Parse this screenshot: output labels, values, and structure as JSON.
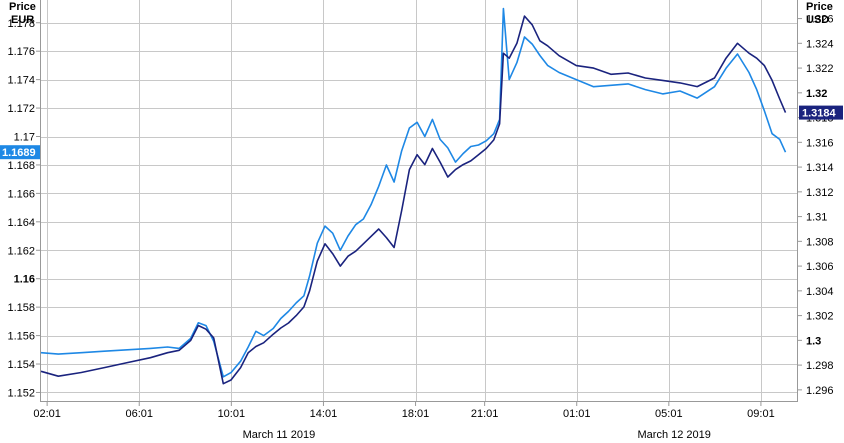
{
  "chart_data": {
    "type": "line",
    "left_axis": {
      "title_line1": "Price",
      "title_line2": "EUR",
      "ylim": [
        1.1514,
        1.1796
      ],
      "ticks": [
        {
          "v": 1.152,
          "label": "1.152",
          "bold": false
        },
        {
          "v": 1.154,
          "label": "1.154",
          "bold": false
        },
        {
          "v": 1.156,
          "label": "1.156",
          "bold": false
        },
        {
          "v": 1.158,
          "label": "1.158",
          "bold": false
        },
        {
          "v": 1.16,
          "label": "1.16",
          "bold": true
        },
        {
          "v": 1.162,
          "label": "1.162",
          "bold": false
        },
        {
          "v": 1.164,
          "label": "1.164",
          "bold": false
        },
        {
          "v": 1.166,
          "label": "1.166",
          "bold": false
        },
        {
          "v": 1.168,
          "label": "1.168",
          "bold": false
        },
        {
          "v": 1.17,
          "label": "1.17",
          "bold": false
        },
        {
          "v": 1.172,
          "label": "1.172",
          "bold": false
        },
        {
          "v": 1.174,
          "label": "1.174",
          "bold": false
        },
        {
          "v": 1.176,
          "label": "1.176",
          "bold": false
        },
        {
          "v": 1.178,
          "label": "1.178",
          "bold": false
        }
      ],
      "last_value_label": "1.1689",
      "last_value": 1.1689,
      "badge_color": "#1e88e5"
    },
    "right_axis": {
      "title_line1": "Price",
      "title_line2": "USD",
      "ylim": [
        1.2951,
        1.3275
      ],
      "ticks": [
        {
          "v": 1.296,
          "label": "1.296",
          "bold": false
        },
        {
          "v": 1.298,
          "label": "1.298",
          "bold": false
        },
        {
          "v": 1.3,
          "label": "1.3",
          "bold": true
        },
        {
          "v": 1.302,
          "label": "1.302",
          "bold": false
        },
        {
          "v": 1.304,
          "label": "1.304",
          "bold": false
        },
        {
          "v": 1.306,
          "label": "1.306",
          "bold": false
        },
        {
          "v": 1.308,
          "label": "1.308",
          "bold": false
        },
        {
          "v": 1.31,
          "label": "1.31",
          "bold": false
        },
        {
          "v": 1.312,
          "label": "1.312",
          "bold": false
        },
        {
          "v": 1.314,
          "label": "1.314",
          "bold": false
        },
        {
          "v": 1.316,
          "label": "1.316",
          "bold": false
        },
        {
          "v": 1.318,
          "label": "1.318",
          "bold": false
        },
        {
          "v": 1.32,
          "label": "1.32",
          "bold": true
        },
        {
          "v": 1.322,
          "label": "1.322",
          "bold": false
        },
        {
          "v": 1.324,
          "label": "1.324",
          "bold": false
        },
        {
          "v": 1.326,
          "label": "1.326",
          "bold": false
        }
      ],
      "last_value_label": "1.3184",
      "last_value": 1.3184,
      "badge_color": "#1a237e"
    },
    "x_axis": {
      "start": "2019-03-11T01:45",
      "end": "2019-03-12T10:35",
      "ticks": [
        {
          "t": "2019-03-11T02:01",
          "label": "02:01"
        },
        {
          "t": "2019-03-11T06:01",
          "label": "06:01"
        },
        {
          "t": "2019-03-11T10:01",
          "label": "10:01"
        },
        {
          "t": "2019-03-11T14:01",
          "label": "14:01"
        },
        {
          "t": "2019-03-11T18:01",
          "label": "18:01"
        },
        {
          "t": "2019-03-11T21:01",
          "label": "21:01"
        },
        {
          "t": "2019-03-12T01:01",
          "label": "01:01"
        },
        {
          "t": "2019-03-12T05:01",
          "label": "05:01"
        },
        {
          "t": "2019-03-12T09:01",
          "label": "09:01"
        }
      ],
      "date_labels": [
        {
          "t": "2019-03-11T12:05",
          "label": "March 11 2019"
        },
        {
          "t": "2019-03-12T05:15",
          "label": "March 12 2019"
        }
      ]
    },
    "grid": true,
    "series": [
      {
        "axis": "left",
        "color": "#1e88e5",
        "points": [
          [
            "2019-03-11T01:45",
            1.1548
          ],
          [
            "2019-03-11T02:30",
            1.1547
          ],
          [
            "2019-03-11T03:30",
            1.1548
          ],
          [
            "2019-03-11T04:30",
            1.1549
          ],
          [
            "2019-03-11T05:30",
            1.155
          ],
          [
            "2019-03-11T06:30",
            1.1551
          ],
          [
            "2019-03-11T07:15",
            1.1552
          ],
          [
            "2019-03-11T07:45",
            1.1551
          ],
          [
            "2019-03-11T08:15",
            1.1558
          ],
          [
            "2019-03-11T08:35",
            1.1569
          ],
          [
            "2019-03-11T08:55",
            1.1567
          ],
          [
            "2019-03-11T09:15",
            1.1556
          ],
          [
            "2019-03-11T09:40",
            1.1531
          ],
          [
            "2019-03-11T10:00",
            1.1534
          ],
          [
            "2019-03-11T10:25",
            1.1542
          ],
          [
            "2019-03-11T10:45",
            1.1552
          ],
          [
            "2019-03-11T11:05",
            1.1563
          ],
          [
            "2019-03-11T11:25",
            1.156
          ],
          [
            "2019-03-11T11:50",
            1.1565
          ],
          [
            "2019-03-11T12:10",
            1.1572
          ],
          [
            "2019-03-11T12:30",
            1.1577
          ],
          [
            "2019-03-11T12:50",
            1.1583
          ],
          [
            "2019-03-11T13:10",
            1.1588
          ],
          [
            "2019-03-11T13:25",
            1.1602
          ],
          [
            "2019-03-11T13:45",
            1.1625
          ],
          [
            "2019-03-11T14:05",
            1.1637
          ],
          [
            "2019-03-11T14:25",
            1.1632
          ],
          [
            "2019-03-11T14:45",
            1.162
          ],
          [
            "2019-03-11T15:05",
            1.163
          ],
          [
            "2019-03-11T15:25",
            1.1638
          ],
          [
            "2019-03-11T15:45",
            1.1642
          ],
          [
            "2019-03-11T16:05",
            1.1652
          ],
          [
            "2019-03-11T16:25",
            1.1665
          ],
          [
            "2019-03-11T16:45",
            1.168
          ],
          [
            "2019-03-11T17:05",
            1.1668
          ],
          [
            "2019-03-11T17:25",
            1.169
          ],
          [
            "2019-03-11T17:45",
            1.1706
          ],
          [
            "2019-03-11T18:05",
            1.171
          ],
          [
            "2019-03-11T18:25",
            1.17
          ],
          [
            "2019-03-11T18:45",
            1.1712
          ],
          [
            "2019-03-11T19:05",
            1.1698
          ],
          [
            "2019-03-11T19:25",
            1.1692
          ],
          [
            "2019-03-11T19:45",
            1.1682
          ],
          [
            "2019-03-11T20:05",
            1.1688
          ],
          [
            "2019-03-11T20:25",
            1.1693
          ],
          [
            "2019-03-11T20:45",
            1.1694
          ],
          [
            "2019-03-11T21:05",
            1.1697
          ],
          [
            "2019-03-11T21:25",
            1.1702
          ],
          [
            "2019-03-11T21:40",
            1.1712
          ],
          [
            "2019-03-11T21:50",
            1.179
          ],
          [
            "2019-03-11T22:05",
            1.174
          ],
          [
            "2019-03-11T22:25",
            1.1752
          ],
          [
            "2019-03-11T22:45",
            1.177
          ],
          [
            "2019-03-11T23:05",
            1.1765
          ],
          [
            "2019-03-11T23:25",
            1.1757
          ],
          [
            "2019-03-11T23:45",
            1.175
          ],
          [
            "2019-03-12T00:15",
            1.1745
          ],
          [
            "2019-03-12T01:00",
            1.174
          ],
          [
            "2019-03-12T01:45",
            1.1735
          ],
          [
            "2019-03-12T02:30",
            1.1736
          ],
          [
            "2019-03-12T03:15",
            1.1737
          ],
          [
            "2019-03-12T04:00",
            1.1733
          ],
          [
            "2019-03-12T04:45",
            1.173
          ],
          [
            "2019-03-12T05:30",
            1.1732
          ],
          [
            "2019-03-12T06:15",
            1.1727
          ],
          [
            "2019-03-12T07:00",
            1.1735
          ],
          [
            "2019-03-12T07:30",
            1.1748
          ],
          [
            "2019-03-12T08:00",
            1.1758
          ],
          [
            "2019-03-12T08:30",
            1.1745
          ],
          [
            "2019-03-12T08:50",
            1.1733
          ],
          [
            "2019-03-12T09:10",
            1.1718
          ],
          [
            "2019-03-12T09:30",
            1.1702
          ],
          [
            "2019-03-12T09:50",
            1.1698
          ],
          [
            "2019-03-12T10:05",
            1.1689
          ]
        ]
      },
      {
        "axis": "right",
        "color": "#1a237e",
        "points": [
          [
            "2019-03-11T01:45",
            1.2975
          ],
          [
            "2019-03-11T02:30",
            1.2971
          ],
          [
            "2019-03-11T03:30",
            1.2974
          ],
          [
            "2019-03-11T04:30",
            1.2978
          ],
          [
            "2019-03-11T05:30",
            1.2982
          ],
          [
            "2019-03-11T06:30",
            1.2986
          ],
          [
            "2019-03-11T07:15",
            1.299
          ],
          [
            "2019-03-11T07:45",
            1.2992
          ],
          [
            "2019-03-11T08:15",
            1.3
          ],
          [
            "2019-03-11T08:35",
            1.3012
          ],
          [
            "2019-03-11T08:55",
            1.3009
          ],
          [
            "2019-03-11T09:15",
            1.3002
          ],
          [
            "2019-03-11T09:40",
            1.2965
          ],
          [
            "2019-03-11T10:00",
            1.2968
          ],
          [
            "2019-03-11T10:25",
            1.2978
          ],
          [
            "2019-03-11T10:45",
            1.299
          ],
          [
            "2019-03-11T11:05",
            1.2995
          ],
          [
            "2019-03-11T11:25",
            1.2998
          ],
          [
            "2019-03-11T11:50",
            1.3005
          ],
          [
            "2019-03-11T12:10",
            1.301
          ],
          [
            "2019-03-11T12:30",
            1.3014
          ],
          [
            "2019-03-11T12:50",
            1.302
          ],
          [
            "2019-03-11T13:10",
            1.3027
          ],
          [
            "2019-03-11T13:25",
            1.304
          ],
          [
            "2019-03-11T13:45",
            1.3064
          ],
          [
            "2019-03-11T14:05",
            1.3078
          ],
          [
            "2019-03-11T14:25",
            1.307
          ],
          [
            "2019-03-11T14:45",
            1.306
          ],
          [
            "2019-03-11T15:05",
            1.3068
          ],
          [
            "2019-03-11T15:25",
            1.3072
          ],
          [
            "2019-03-11T15:45",
            1.3078
          ],
          [
            "2019-03-11T16:05",
            1.3084
          ],
          [
            "2019-03-11T16:25",
            1.309
          ],
          [
            "2019-03-11T16:45",
            1.3083
          ],
          [
            "2019-03-11T17:05",
            1.3075
          ],
          [
            "2019-03-11T17:25",
            1.3105
          ],
          [
            "2019-03-11T17:45",
            1.3138
          ],
          [
            "2019-03-11T18:05",
            1.315
          ],
          [
            "2019-03-11T18:25",
            1.3142
          ],
          [
            "2019-03-11T18:45",
            1.3155
          ],
          [
            "2019-03-11T19:05",
            1.3144
          ],
          [
            "2019-03-11T19:25",
            1.3132
          ],
          [
            "2019-03-11T19:45",
            1.3138
          ],
          [
            "2019-03-11T20:05",
            1.3142
          ],
          [
            "2019-03-11T20:25",
            1.3145
          ],
          [
            "2019-03-11T20:45",
            1.315
          ],
          [
            "2019-03-11T21:05",
            1.3155
          ],
          [
            "2019-03-11T21:25",
            1.3162
          ],
          [
            "2019-03-11T21:40",
            1.3175
          ],
          [
            "2019-03-11T21:50",
            1.3232
          ],
          [
            "2019-03-11T22:05",
            1.3228
          ],
          [
            "2019-03-11T22:25",
            1.324
          ],
          [
            "2019-03-11T22:45",
            1.3262
          ],
          [
            "2019-03-11T23:05",
            1.3255
          ],
          [
            "2019-03-11T23:25",
            1.3242
          ],
          [
            "2019-03-11T23:45",
            1.3238
          ],
          [
            "2019-03-12T00:15",
            1.323
          ],
          [
            "2019-03-12T01:00",
            1.3222
          ],
          [
            "2019-03-12T01:45",
            1.322
          ],
          [
            "2019-03-12T02:30",
            1.3215
          ],
          [
            "2019-03-12T03:15",
            1.3216
          ],
          [
            "2019-03-12T04:00",
            1.3212
          ],
          [
            "2019-03-12T04:45",
            1.321
          ],
          [
            "2019-03-12T05:30",
            1.3208
          ],
          [
            "2019-03-12T06:15",
            1.3205
          ],
          [
            "2019-03-12T07:00",
            1.3212
          ],
          [
            "2019-03-12T07:30",
            1.3228
          ],
          [
            "2019-03-12T08:00",
            1.324
          ],
          [
            "2019-03-12T08:30",
            1.3232
          ],
          [
            "2019-03-12T08:50",
            1.3228
          ],
          [
            "2019-03-12T09:10",
            1.3222
          ],
          [
            "2019-03-12T09:30",
            1.321
          ],
          [
            "2019-03-12T09:50",
            1.3195
          ],
          [
            "2019-03-12T10:05",
            1.3184
          ]
        ]
      }
    ]
  }
}
